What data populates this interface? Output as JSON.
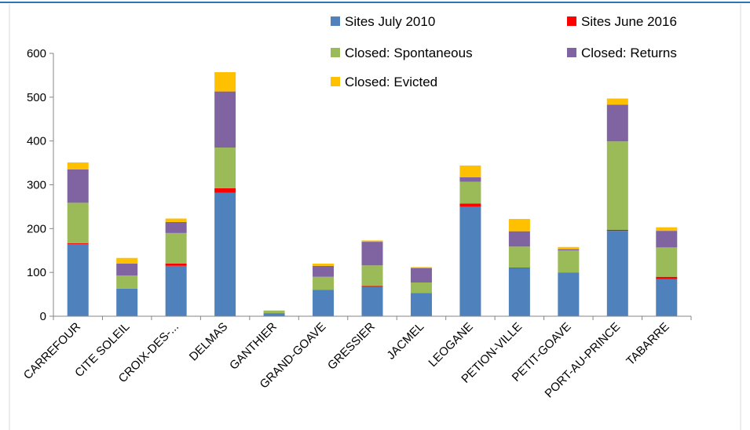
{
  "chart_data": {
    "type": "bar",
    "stacked": true,
    "title": "",
    "xlabel": "",
    "ylabel": "",
    "ylim": [
      0,
      600
    ],
    "yticks": [
      0,
      100,
      200,
      300,
      400,
      500,
      600
    ],
    "grid": false,
    "legend_position": "top-right",
    "categories": [
      "CARREFOUR",
      "CITE SOLEIL",
      "CROIX-DES-...",
      "DELMAS",
      "GANTHIER",
      "GRAND-GOAVE",
      "GRESSIER",
      "JACMEL",
      "LEOGANE",
      "PETION-VILLE",
      "PETIT-GOAVE",
      "PORT-AU-PRINCE",
      "TABARRE"
    ],
    "series": [
      {
        "name": "Sites July 2010",
        "color": "#4F81BD",
        "values": [
          165,
          63,
          115,
          282,
          7,
          60,
          67,
          53,
          250,
          110,
          100,
          195,
          85
        ]
      },
      {
        "name": "Sites June 2016",
        "color": "#FF0000",
        "values": [
          2,
          0,
          5,
          10,
          0,
          0,
          2,
          0,
          7,
          1,
          0,
          2,
          5
        ]
      },
      {
        "name": "Closed: Spontaneous",
        "color": "#9BBB59",
        "values": [
          92,
          30,
          70,
          93,
          6,
          30,
          47,
          24,
          50,
          48,
          50,
          202,
          67
        ]
      },
      {
        "name": "Closed: Returns",
        "color": "#8064A2",
        "values": [
          76,
          27,
          25,
          128,
          0,
          25,
          54,
          33,
          10,
          35,
          3,
          84,
          38
        ]
      },
      {
        "name": "Closed: Evicted",
        "color": "#FFC000",
        "values": [
          16,
          13,
          8,
          44,
          0,
          5,
          3,
          2,
          27,
          28,
          5,
          14,
          8
        ]
      }
    ]
  },
  "colors": {
    "axis": "#868686",
    "top_rule": "#2E75B6",
    "frame_border": "#D9D9D9"
  }
}
